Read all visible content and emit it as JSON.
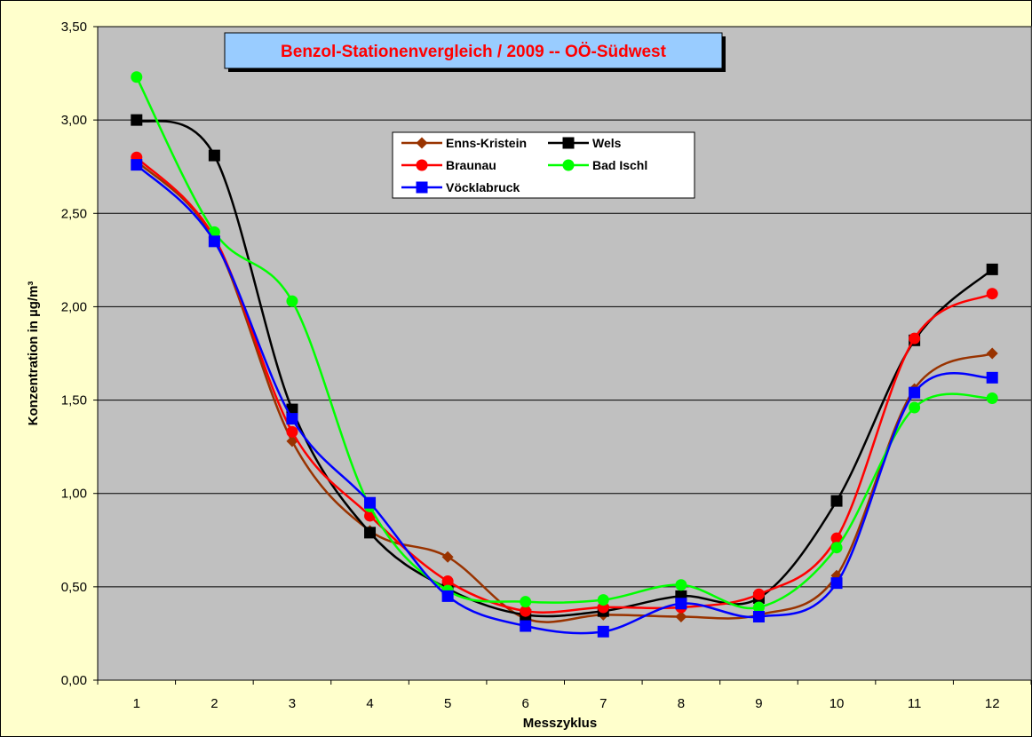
{
  "chart_data": {
    "type": "line",
    "title": "Benzol-Stationenvergleich / 2009  --  OÖ-Südwest",
    "xlabel": "Messzyklus",
    "ylabel": "Konzentration in  µg/m³",
    "categories": [
      "1",
      "2",
      "3",
      "4",
      "5",
      "6",
      "7",
      "8",
      "9",
      "10",
      "11",
      "12"
    ],
    "ylim": [
      0,
      3.5
    ],
    "yticks": [
      "0,00",
      "0,50",
      "1,00",
      "1,50",
      "2,00",
      "2,50",
      "3,00",
      "3,50"
    ],
    "grid": "horizontal",
    "legend_position": "upper-center",
    "plot_background": "#c0c0c0",
    "page_background": "#ffffcc",
    "series": [
      {
        "name": "Enns-Kristein",
        "color": "#993300",
        "marker": "diamond",
        "values": [
          2.78,
          2.36,
          1.28,
          0.8,
          0.66,
          0.33,
          0.35,
          0.34,
          0.35,
          0.56,
          1.56,
          1.75
        ]
      },
      {
        "name": "Wels",
        "color": "#000000",
        "marker": "square",
        "values": [
          3.0,
          2.81,
          1.45,
          0.79,
          0.49,
          0.35,
          0.37,
          0.45,
          0.44,
          0.96,
          1.82,
          2.2
        ]
      },
      {
        "name": "Braunau",
        "color": "#ff0000",
        "marker": "circle",
        "values": [
          2.8,
          2.37,
          1.33,
          0.88,
          0.53,
          0.37,
          0.39,
          0.39,
          0.46,
          0.76,
          1.83,
          2.07
        ]
      },
      {
        "name": "Bad Ischl",
        "color": "#00ff00",
        "marker": "circle",
        "values": [
          3.23,
          2.4,
          2.03,
          0.93,
          0.48,
          0.42,
          0.43,
          0.51,
          0.39,
          0.71,
          1.46,
          1.51
        ]
      },
      {
        "name": "Vöcklabruck",
        "color": "#0000ff",
        "marker": "square",
        "values": [
          2.76,
          2.35,
          1.4,
          0.95,
          0.45,
          0.29,
          0.26,
          0.41,
          0.34,
          0.52,
          1.54,
          1.62
        ]
      }
    ]
  }
}
